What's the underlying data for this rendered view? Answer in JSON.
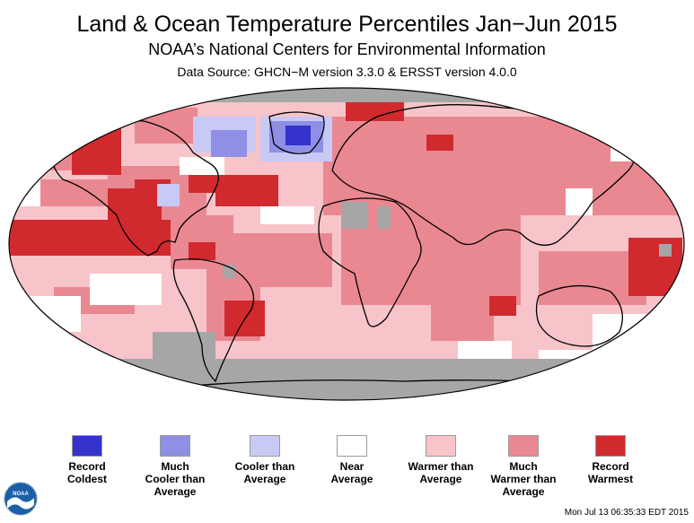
{
  "header": {
    "title": "Land & Ocean Temperature Percentiles Jan−Jun 2015",
    "subtitle": "NOAA’s National Centers for Environmental Information",
    "source": "Data Source: GHCN−M version 3.3.0 & ERSST version 4.0.0"
  },
  "legend": [
    {
      "label": "Record\nColdest",
      "color": "#3333cc"
    },
    {
      "label": "Much\nCooler than\nAverage",
      "color": "#8f8fe6"
    },
    {
      "label": "Cooler than\nAverage",
      "color": "#c9c9f5"
    },
    {
      "label": "Near\nAverage",
      "color": "#ffffff"
    },
    {
      "label": "Warmer than\nAverage",
      "color": "#f7c4c9"
    },
    {
      "label": "Much\nWarmer than\nAverage",
      "color": "#ea8892"
    },
    {
      "label": "Record\nWarmest",
      "color": "#d02a2e"
    }
  ],
  "colors": {
    "no_data": "#a6a6a6",
    "outline": "#000000"
  },
  "logo": {
    "text": "NOAA"
  },
  "footer": {
    "timestamp": "Mon Jul 13 06:35:33 EDT 2015"
  }
}
